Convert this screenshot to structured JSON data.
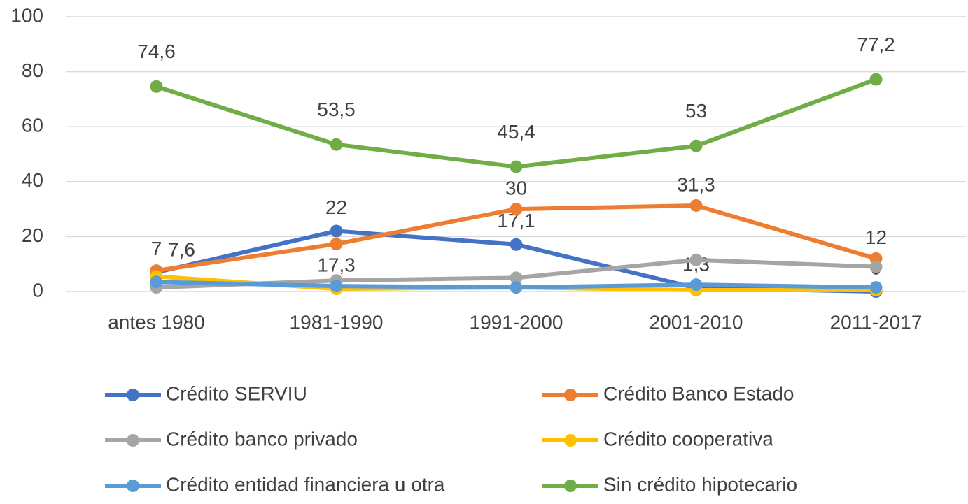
{
  "chart_data": {
    "type": "line",
    "categories": [
      "antes 1980",
      "1981-1990",
      "1991-2000",
      "2001-2010",
      "2011-2017"
    ],
    "ylim": [
      0,
      100
    ],
    "yticks": [
      0,
      20,
      40,
      60,
      80,
      100
    ],
    "grid": true,
    "series": [
      {
        "name": "Crédito SERVIU",
        "color": "#4472c4",
        "values": [
          7,
          22,
          17.1,
          1.3,
          0
        ],
        "value_labels": [
          "7",
          "22",
          "17,1",
          "1,3",
          "0"
        ]
      },
      {
        "name": "Crédito Banco Estado",
        "color": "#ed7d31",
        "values": [
          7.6,
          17.3,
          30,
          31.3,
          12
        ],
        "value_labels": [
          "7,6",
          "17,3",
          "30",
          "31,3",
          "12"
        ]
      },
      {
        "name": "Crédito banco privado",
        "color": "#a5a5a5",
        "values": [
          1.5,
          4,
          5,
          11.5,
          9
        ]
      },
      {
        "name": "Crédito cooperativa",
        "color": "#ffc000",
        "values": [
          5.5,
          1,
          1.5,
          0.5,
          0.5
        ]
      },
      {
        "name": "Crédito entidad financiera u otra",
        "color": "#5b9bd5",
        "values": [
          3.5,
          2,
          1.5,
          2.5,
          1.5
        ]
      },
      {
        "name": "Sin crédito hipotecario",
        "color": "#70ad47",
        "values": [
          74.6,
          53.5,
          45.4,
          53,
          77.2
        ],
        "value_labels": [
          "74,6",
          "53,5",
          "45,4",
          "53",
          "77,2"
        ]
      }
    ]
  }
}
